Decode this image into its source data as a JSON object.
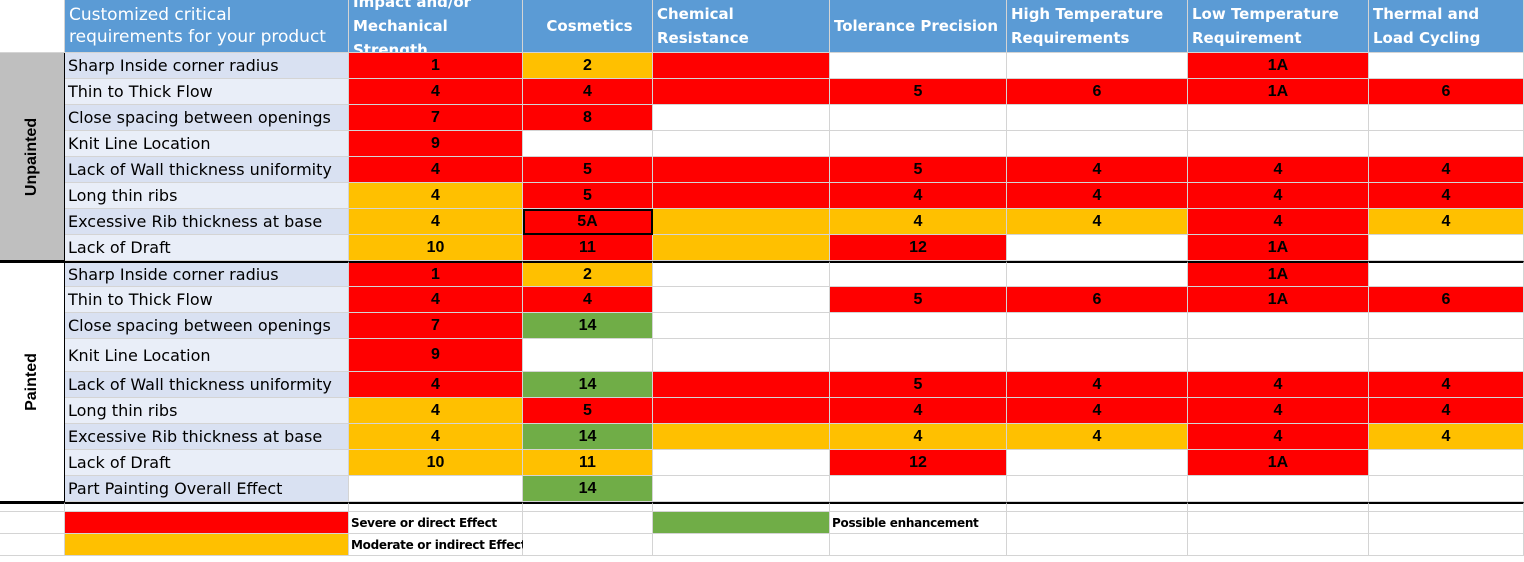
{
  "header": {
    "corner": "",
    "title": "Customized critical requirements for your product",
    "columns": [
      "Impact and/or Mechanical Strength",
      "Cosmetics",
      "Chemical Resistance",
      "Tolerance Precision",
      "High Temperature Requirements",
      "Low Temperature Requirement",
      "Thermal and Load Cycling"
    ]
  },
  "colors": {
    "red": "#ff0000",
    "amber": "#ffc000",
    "green": "#70ad47",
    "white": "#ffffff",
    "header_blue": "#5b9bd5",
    "label_blue": "#d9e1f2"
  },
  "groups": [
    {
      "name": "Unpainted",
      "rows": [
        {
          "label": "Sharp Inside corner radius",
          "cells": [
            {
              "c": "red",
              "v": "1"
            },
            {
              "c": "amber",
              "v": "2"
            },
            {
              "c": "red",
              "v": ""
            },
            {
              "c": "white",
              "v": ""
            },
            {
              "c": "white",
              "v": ""
            },
            {
              "c": "red",
              "v": "1A"
            },
            {
              "c": "white",
              "v": ""
            }
          ]
        },
        {
          "label": "Thin to Thick Flow",
          "cells": [
            {
              "c": "red",
              "v": "4"
            },
            {
              "c": "red",
              "v": "4"
            },
            {
              "c": "red",
              "v": ""
            },
            {
              "c": "red",
              "v": "5"
            },
            {
              "c": "red",
              "v": "6"
            },
            {
              "c": "red",
              "v": "1A"
            },
            {
              "c": "red",
              "v": "6"
            }
          ]
        },
        {
          "label": "Close spacing between openings",
          "cells": [
            {
              "c": "red",
              "v": "7"
            },
            {
              "c": "red",
              "v": "8"
            },
            {
              "c": "white",
              "v": ""
            },
            {
              "c": "white",
              "v": ""
            },
            {
              "c": "white",
              "v": ""
            },
            {
              "c": "white",
              "v": ""
            },
            {
              "c": "white",
              "v": ""
            }
          ]
        },
        {
          "label": "Knit Line Location",
          "cells": [
            {
              "c": "red",
              "v": "9"
            },
            {
              "c": "white",
              "v": ""
            },
            {
              "c": "white",
              "v": ""
            },
            {
              "c": "white",
              "v": ""
            },
            {
              "c": "white",
              "v": ""
            },
            {
              "c": "white",
              "v": ""
            },
            {
              "c": "white",
              "v": ""
            }
          ]
        },
        {
          "label": "Lack of Wall thickness uniformity",
          "cells": [
            {
              "c": "red",
              "v": "4"
            },
            {
              "c": "red",
              "v": "5"
            },
            {
              "c": "red",
              "v": ""
            },
            {
              "c": "red",
              "v": "5"
            },
            {
              "c": "red",
              "v": "4"
            },
            {
              "c": "red",
              "v": "4"
            },
            {
              "c": "red",
              "v": "4"
            }
          ]
        },
        {
          "label": "Long thin ribs",
          "cells": [
            {
              "c": "amber",
              "v": "4"
            },
            {
              "c": "red",
              "v": "5"
            },
            {
              "c": "red",
              "v": ""
            },
            {
              "c": "red",
              "v": "4"
            },
            {
              "c": "red",
              "v": "4"
            },
            {
              "c": "red",
              "v": "4"
            },
            {
              "c": "red",
              "v": "4"
            }
          ]
        },
        {
          "label": " Excessive Rib thickness at base",
          "cells": [
            {
              "c": "amber",
              "v": "4"
            },
            {
              "c": "red",
              "v": "5A",
              "selected": true
            },
            {
              "c": "amber",
              "v": ""
            },
            {
              "c": "amber",
              "v": "4"
            },
            {
              "c": "amber",
              "v": "4"
            },
            {
              "c": "red",
              "v": "4"
            },
            {
              "c": "amber",
              "v": "4"
            }
          ]
        },
        {
          "label": "Lack of Draft",
          "cells": [
            {
              "c": "amber",
              "v": "10"
            },
            {
              "c": "red",
              "v": "11"
            },
            {
              "c": "amber",
              "v": ""
            },
            {
              "c": "red",
              "v": "12"
            },
            {
              "c": "white",
              "v": ""
            },
            {
              "c": "red",
              "v": "1A"
            },
            {
              "c": "white",
              "v": ""
            }
          ]
        }
      ]
    },
    {
      "name": "Painted",
      "rows": [
        {
          "label": "Sharp Inside corner radius",
          "cells": [
            {
              "c": "red",
              "v": "1"
            },
            {
              "c": "amber",
              "v": "2"
            },
            {
              "c": "white",
              "v": ""
            },
            {
              "c": "white",
              "v": ""
            },
            {
              "c": "white",
              "v": ""
            },
            {
              "c": "red",
              "v": "1A"
            },
            {
              "c": "white",
              "v": ""
            }
          ]
        },
        {
          "label": "Thin to Thick Flow",
          "cells": [
            {
              "c": "red",
              "v": "4"
            },
            {
              "c": "red",
              "v": "4"
            },
            {
              "c": "white",
              "v": ""
            },
            {
              "c": "red",
              "v": "5"
            },
            {
              "c": "red",
              "v": "6"
            },
            {
              "c": "red",
              "v": "1A"
            },
            {
              "c": "red",
              "v": "6"
            }
          ]
        },
        {
          "label": "Close spacing between openings",
          "cells": [
            {
              "c": "red",
              "v": "7"
            },
            {
              "c": "green",
              "v": "14"
            },
            {
              "c": "white",
              "v": ""
            },
            {
              "c": "white",
              "v": ""
            },
            {
              "c": "white",
              "v": ""
            },
            {
              "c": "white",
              "v": ""
            },
            {
              "c": "white",
              "v": ""
            }
          ]
        },
        {
          "label": "Knit Line Location",
          "cells": [
            {
              "c": "red",
              "v": "9"
            },
            {
              "c": "white",
              "v": ""
            },
            {
              "c": "white",
              "v": ""
            },
            {
              "c": "white",
              "v": ""
            },
            {
              "c": "white",
              "v": ""
            },
            {
              "c": "white",
              "v": ""
            },
            {
              "c": "white",
              "v": ""
            }
          ]
        },
        {
          "label": "Lack of Wall thickness uniformity",
          "cells": [
            {
              "c": "red",
              "v": "4"
            },
            {
              "c": "green",
              "v": "14"
            },
            {
              "c": "red",
              "v": ""
            },
            {
              "c": "red",
              "v": "5"
            },
            {
              "c": "red",
              "v": "4"
            },
            {
              "c": "red",
              "v": "4"
            },
            {
              "c": "red",
              "v": "4"
            }
          ]
        },
        {
          "label": "Long thin ribs",
          "cells": [
            {
              "c": "amber",
              "v": "4"
            },
            {
              "c": "red",
              "v": "5"
            },
            {
              "c": "red",
              "v": ""
            },
            {
              "c": "red",
              "v": "4"
            },
            {
              "c": "red",
              "v": "4"
            },
            {
              "c": "red",
              "v": "4"
            },
            {
              "c": "red",
              "v": "4"
            }
          ]
        },
        {
          "label": " Excessive Rib thickness at base",
          "cells": [
            {
              "c": "amber",
              "v": "4"
            },
            {
              "c": "green",
              "v": "14"
            },
            {
              "c": "amber",
              "v": ""
            },
            {
              "c": "amber",
              "v": "4"
            },
            {
              "c": "amber",
              "v": "4"
            },
            {
              "c": "red",
              "v": "4"
            },
            {
              "c": "amber",
              "v": "4"
            }
          ]
        },
        {
          "label": "Lack of Draft",
          "cells": [
            {
              "c": "amber",
              "v": "10"
            },
            {
              "c": "amber",
              "v": "11"
            },
            {
              "c": "white",
              "v": ""
            },
            {
              "c": "red",
              "v": "12"
            },
            {
              "c": "white",
              "v": ""
            },
            {
              "c": "red",
              "v": "1A"
            },
            {
              "c": "white",
              "v": ""
            }
          ]
        },
        {
          "label": "Part Painting Overall Effect",
          "cells": [
            {
              "c": "white",
              "v": ""
            },
            {
              "c": "green",
              "v": "14"
            },
            {
              "c": "white",
              "v": ""
            },
            {
              "c": "white",
              "v": ""
            },
            {
              "c": "white",
              "v": ""
            },
            {
              "c": "white",
              "v": ""
            },
            {
              "c": "white",
              "v": ""
            }
          ]
        }
      ]
    }
  ],
  "legend": [
    {
      "color": "red",
      "label": "Severe or direct Effect"
    },
    {
      "color": "green",
      "label": "Possible enhancement"
    },
    {
      "color": "amber",
      "label": "Moderate or indirect Effect"
    }
  ]
}
